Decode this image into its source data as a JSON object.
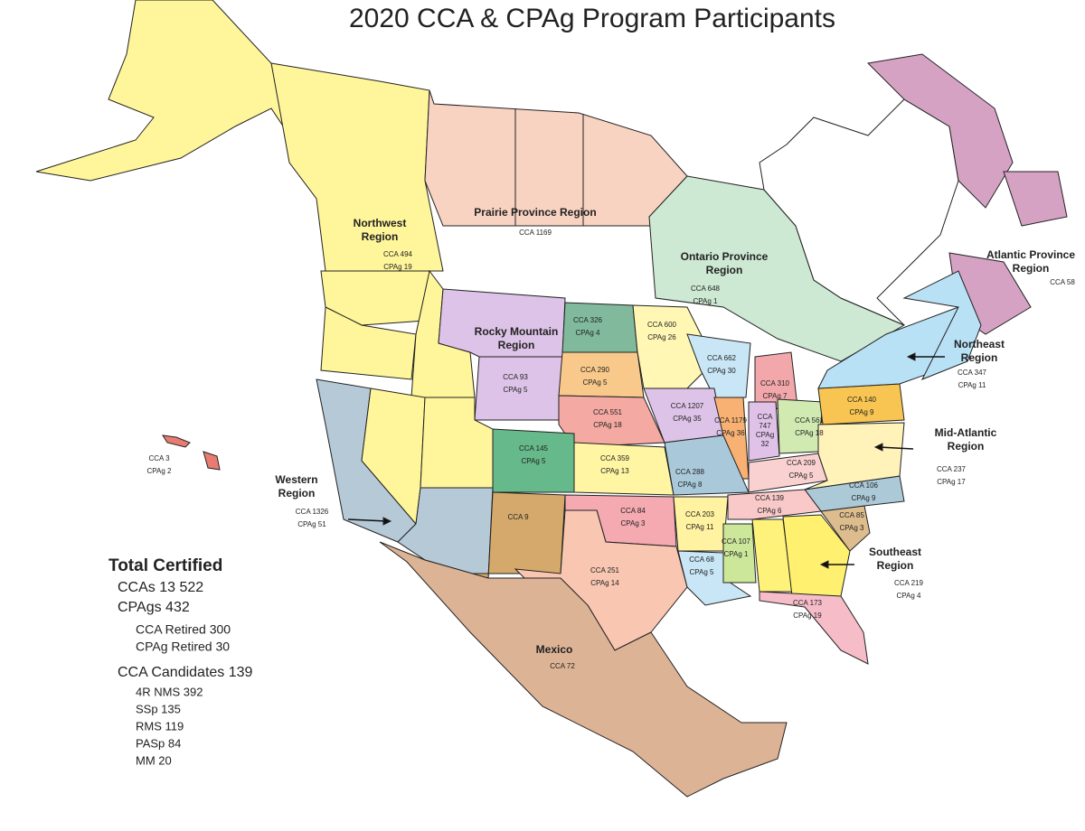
{
  "title": "2020 CCA & CPAg Program Participants",
  "regions": [
    {
      "name": [
        "Northwest",
        "Region"
      ],
      "counts": [
        "CCA 494",
        "CPAg 19"
      ]
    },
    {
      "name": [
        "Prairie Province Region"
      ],
      "counts": [
        "CCA 1169"
      ]
    },
    {
      "name": [
        "Ontario Province",
        "Region"
      ],
      "counts": [
        "CCA 648",
        "CPAg 1"
      ]
    },
    {
      "name": [
        "Atlantic Province",
        "Region"
      ],
      "counts": [
        "CCA 58"
      ]
    },
    {
      "name": [
        "Rocky Mountain",
        "Region"
      ],
      "counts": []
    },
    {
      "name": [
        "Northeast",
        "Region"
      ],
      "counts": [
        "CCA 347",
        "CPAg 11"
      ]
    },
    {
      "name": [
        "Mid-Atlantic",
        "Region"
      ],
      "counts": [
        "CCA 237",
        "CPAg 17"
      ]
    },
    {
      "name": [
        "Western",
        "Region"
      ],
      "counts": [
        "CCA 1326",
        "CPAg 51"
      ]
    },
    {
      "name": [
        "Southeast",
        "Region"
      ],
      "counts": [
        "CCA 219",
        "CPAg 4"
      ]
    },
    {
      "name": [
        "Mexico"
      ],
      "counts": [
        "CCA 72"
      ]
    }
  ],
  "states": [
    {
      "counts": [
        "CCA 3",
        "CPAg 2"
      ]
    },
    {
      "counts": [
        "CCA 326",
        "CPAg 4"
      ]
    },
    {
      "counts": [
        "CCA 600",
        "CPAg 26"
      ]
    },
    {
      "counts": [
        "CCA 93",
        "CPAg 5"
      ]
    },
    {
      "counts": [
        "CCA 290",
        "CPAg 5"
      ]
    },
    {
      "counts": [
        "CCA 662",
        "CPAg 30"
      ]
    },
    {
      "counts": [
        "CCA 310",
        "CPAg 7"
      ]
    },
    {
      "counts": [
        "CCA 1207",
        "CPAg 35"
      ]
    },
    {
      "counts": [
        "CCA 551",
        "CPAg 18"
      ]
    },
    {
      "counts": [
        "CCA 140",
        "CPAg 9"
      ]
    },
    {
      "counts": [
        "CCA 561",
        "CPAg 18"
      ]
    },
    {
      "counts": [
        "CCA 1179",
        "CPAg 36"
      ]
    },
    {
      "counts": [
        "CCA",
        "747",
        "CPAg",
        "32"
      ]
    },
    {
      "counts": [
        "CCA 145",
        "CPAg 5"
      ]
    },
    {
      "counts": [
        "CCA 359",
        "CPAg 13"
      ]
    },
    {
      "counts": [
        "CCA 288",
        "CPAg 8"
      ]
    },
    {
      "counts": [
        "CCA 209",
        "CPAg 5"
      ]
    },
    {
      "counts": [
        "CCA 106",
        "CPAg 9"
      ]
    },
    {
      "counts": [
        "CCA 139",
        "CPAg 6"
      ]
    },
    {
      "counts": [
        "CCA 9"
      ]
    },
    {
      "counts": [
        "CCA 84",
        "CPAg 3"
      ]
    },
    {
      "counts": [
        "CCA 203",
        "CPAg 11"
      ]
    },
    {
      "counts": [
        "CCA 85",
        "CPAg 3"
      ]
    },
    {
      "counts": [
        "CCA 107",
        "CPAg 1"
      ]
    },
    {
      "counts": [
        "CCA 251",
        "CPAg 14"
      ]
    },
    {
      "counts": [
        "CCA 68",
        "CPAg 5"
      ]
    },
    {
      "counts": [
        "CCA 173",
        "CPAg 19"
      ]
    }
  ],
  "totals": {
    "heading": "Total Certified",
    "items": [
      "CCAs 13 522",
      "CPAgs 432",
      "CCA Retired 300",
      "CPAg Retired 30",
      "CCA Candidates 139",
      "4R NMS 392",
      "SSp 135",
      "RMS 119",
      "PASp 84",
      "MM 20"
    ]
  }
}
